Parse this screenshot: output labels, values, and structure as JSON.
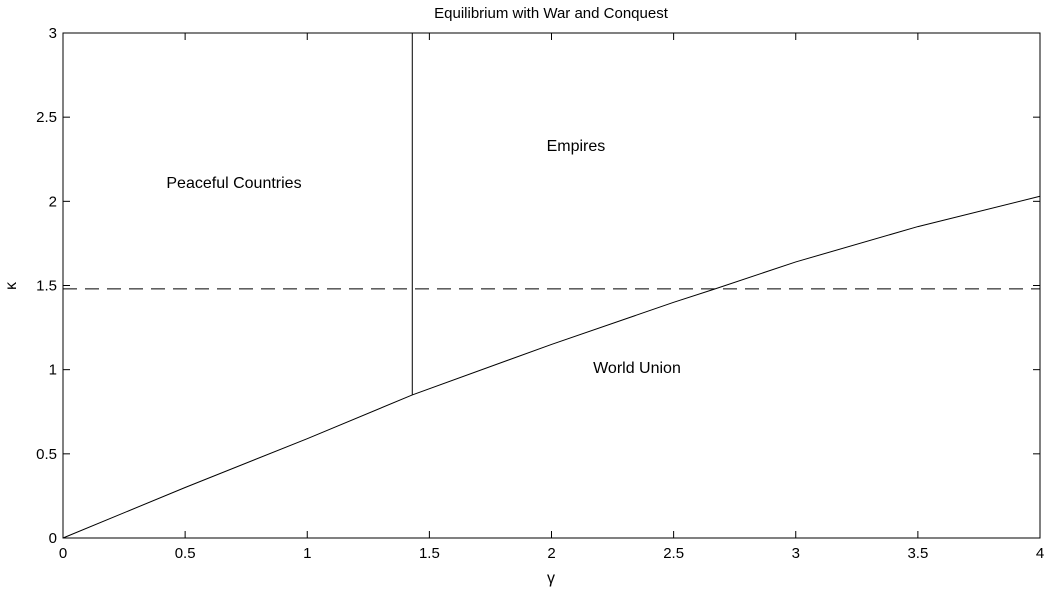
{
  "chart_data": {
    "type": "line",
    "title": "Equilibrium with War and Conquest",
    "xlabel": "γ",
    "ylabel": "κ",
    "xlim": [
      0,
      4
    ],
    "ylim": [
      0,
      3
    ],
    "xticks": [
      0,
      0.5,
      1,
      1.5,
      2,
      2.5,
      3,
      3.5,
      4
    ],
    "yticks": [
      0,
      0.5,
      1,
      1.5,
      2,
      2.5,
      3
    ],
    "xtick_labels": [
      "0",
      "0.5",
      "1",
      "1.5",
      "2",
      "2.5",
      "3",
      "3.5",
      "4"
    ],
    "ytick_labels": [
      "0",
      "0.5",
      "1",
      "1.5",
      "2",
      "2.5",
      "3"
    ],
    "grid": false,
    "series": [
      {
        "style": "solid",
        "x": [
          0,
          0.5,
          1,
          1.43,
          2,
          2.5,
          2.67,
          3,
          3.5,
          4
        ],
        "y": [
          0,
          0.3,
          0.59,
          0.85,
          1.15,
          1.4,
          1.48,
          1.64,
          1.85,
          2.03
        ]
      },
      {
        "style": "solid",
        "x": [
          1.43,
          1.43
        ],
        "y": [
          0.85,
          3
        ]
      },
      {
        "style": "dashed",
        "x": [
          0,
          4
        ],
        "y": [
          1.48,
          1.48
        ]
      }
    ],
    "annotations": [
      {
        "text": "Peaceful Countries",
        "x": 0.7,
        "y": 2.08
      },
      {
        "text": "Empires",
        "x": 2.1,
        "y": 2.3
      },
      {
        "text": "World Union",
        "x": 2.35,
        "y": 0.98
      }
    ]
  }
}
